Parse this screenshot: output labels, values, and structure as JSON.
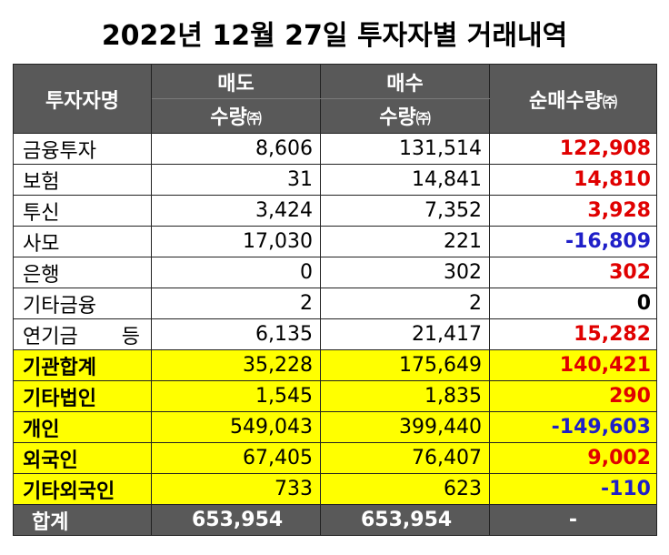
{
  "title": "2022년 12월 27일 투자자별 거래내역",
  "header": {
    "investor": "투자자명",
    "sell": "매도",
    "buy": "매수",
    "qty": "수량",
    "unit": "㈜",
    "net": "순매수량"
  },
  "rows": [
    {
      "name": "금융투자",
      "sell": "8,606",
      "buy": "131,514",
      "net": "122,908",
      "sign": "pos"
    },
    {
      "name": "보험",
      "sell": "31",
      "buy": "14,841",
      "net": "14,810",
      "sign": "pos"
    },
    {
      "name": "투신",
      "sell": "3,424",
      "buy": "7,352",
      "net": "3,928",
      "sign": "pos"
    },
    {
      "name": "사모",
      "sell": "17,030",
      "buy": "221",
      "net": "-16,809",
      "sign": "neg"
    },
    {
      "name": "은행",
      "sell": "0",
      "buy": "302",
      "net": "302",
      "sign": "pos"
    },
    {
      "name": "기타금융",
      "sell": "2",
      "buy": "2",
      "net": "0",
      "sign": "zero"
    },
    {
      "name": "연기금 등",
      "sell": "6,135",
      "buy": "21,417",
      "net": "15,282",
      "sign": "pos"
    }
  ],
  "summary_rows": [
    {
      "name": "기관합계",
      "sell": "35,228",
      "buy": "175,649",
      "net": "140,421",
      "sign": "pos"
    },
    {
      "name": "기타법인",
      "sell": "1,545",
      "buy": "1,835",
      "net": "290",
      "sign": "pos"
    },
    {
      "name": "개인",
      "sell": "549,043",
      "buy": "399,440",
      "net": "-149,603",
      "sign": "neg"
    },
    {
      "name": "외국인",
      "sell": "67,405",
      "buy": "76,407",
      "net": "9,002",
      "sign": "pos"
    },
    {
      "name": "기타외국인",
      "sell": "733",
      "buy": "623",
      "net": "-110",
      "sign": "neg"
    }
  ],
  "total": {
    "name": "합계",
    "sell": "653,954",
    "buy": "653,954",
    "net": "-"
  }
}
